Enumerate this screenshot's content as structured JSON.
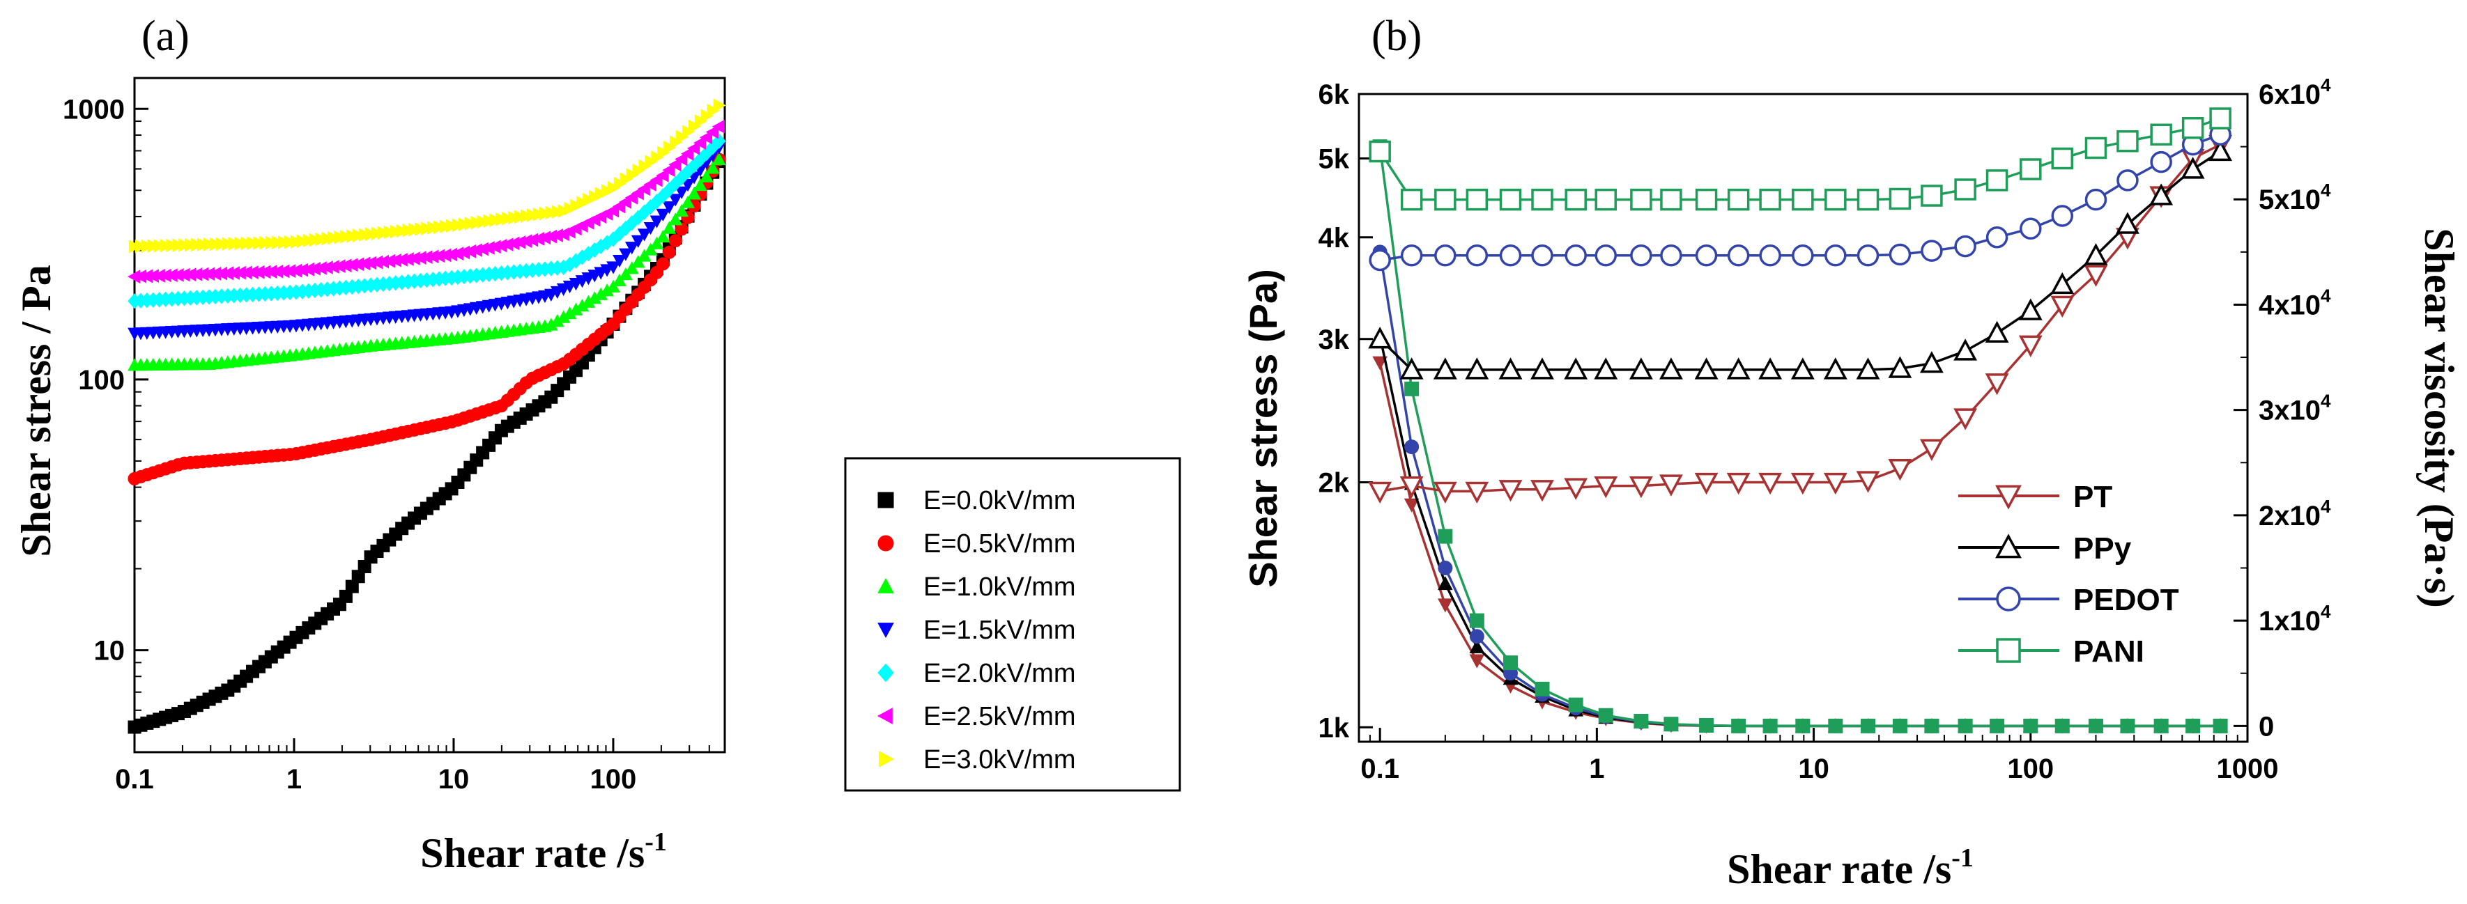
{
  "chart_data": [
    {
      "type": "scatter",
      "panel_label": "(a)",
      "xscale": "log",
      "yscale": "log",
      "xlabel_main": "Shear rate /s",
      "xlabel_sup": "-1",
      "ylabel": "Shear stress / Pa",
      "xlim": [
        0.1,
        500
      ],
      "ylim": [
        4.2,
        1300
      ],
      "xticks": [
        0.1,
        1,
        10,
        100
      ],
      "xtick_labels": [
        "0.1",
        "1",
        "10",
        "100"
      ],
      "yticks": [
        10,
        100,
        1000
      ],
      "ytick_labels": [
        "10",
        "100",
        "1000"
      ],
      "legend_position": "lower-right",
      "series": [
        {
          "name": "E=0.0kV/mm",
          "color": "#000000",
          "marker": "square",
          "x_range": [
            0.1,
            460
          ],
          "n_points": 95,
          "knots": [
            [
              0.1,
              5.2
            ],
            [
              0.2,
              5.9
            ],
            [
              0.4,
              7.2
            ],
            [
              1,
              11
            ],
            [
              2,
              15
            ],
            [
              3,
              22
            ],
            [
              5,
              29
            ],
            [
              10,
              40
            ],
            [
              20,
              65
            ],
            [
              40,
              85
            ],
            [
              60,
              110
            ],
            [
              100,
              160
            ],
            [
              200,
              270
            ],
            [
              460,
              640
            ]
          ]
        },
        {
          "name": "E=0.5kV/mm",
          "color": "#ff0000",
          "marker": "circle",
          "x_range": [
            0.1,
            460
          ],
          "n_points": 95,
          "knots": [
            [
              0.1,
              43
            ],
            [
              0.2,
              49
            ],
            [
              1,
              53
            ],
            [
              3,
              60
            ],
            [
              10,
              70
            ],
            [
              20,
              80
            ],
            [
              30,
              100
            ],
            [
              50,
              115
            ],
            [
              100,
              160
            ],
            [
              200,
              260
            ],
            [
              460,
              650
            ]
          ]
        },
        {
          "name": "E=1.0kV/mm",
          "color": "#00ff00",
          "marker": "triangle-up",
          "x_range": [
            0.1,
            460
          ],
          "n_points": 95,
          "knots": [
            [
              0.1,
              113
            ],
            [
              0.3,
              114
            ],
            [
              1,
              123
            ],
            [
              3,
              133
            ],
            [
              10,
              142
            ],
            [
              40,
              158
            ],
            [
              100,
              220
            ],
            [
              200,
              330
            ],
            [
              460,
              650
            ]
          ]
        },
        {
          "name": "E=1.5kV/mm",
          "color": "#0000ff",
          "marker": "triangle-down",
          "x_range": [
            0.1,
            460
          ],
          "n_points": 95,
          "knots": [
            [
              0.1,
              148
            ],
            [
              1,
              158
            ],
            [
              10,
              178
            ],
            [
              40,
              205
            ],
            [
              100,
              260
            ],
            [
              200,
              400
            ],
            [
              460,
              720
            ]
          ]
        },
        {
          "name": "E=2.0kV/mm",
          "color": "#00ffff",
          "marker": "diamond",
          "x_range": [
            0.1,
            460
          ],
          "n_points": 95,
          "knots": [
            [
              0.1,
              195
            ],
            [
              1,
              210
            ],
            [
              10,
              238
            ],
            [
              50,
              260
            ],
            [
              100,
              330
            ],
            [
              200,
              470
            ],
            [
              460,
              760
            ]
          ]
        },
        {
          "name": "E=2.5kV/mm",
          "color": "#ff00ff",
          "marker": "triangle-left",
          "x_range": [
            0.1,
            460
          ],
          "n_points": 95,
          "knots": [
            [
              0.1,
              240
            ],
            [
              1,
              252
            ],
            [
              10,
              290
            ],
            [
              50,
              345
            ],
            [
              100,
              420
            ],
            [
              200,
              560
            ],
            [
              460,
              860
            ]
          ]
        },
        {
          "name": "E=3.0kV/mm",
          "color": "#ffff00",
          "marker": "triangle-right",
          "x_range": [
            0.1,
            460
          ],
          "n_points": 95,
          "knots": [
            [
              0.1,
              310
            ],
            [
              1,
              322
            ],
            [
              10,
              370
            ],
            [
              50,
              420
            ],
            [
              100,
              510
            ],
            [
              200,
              680
            ],
            [
              460,
              1030
            ]
          ]
        }
      ]
    },
    {
      "type": "line",
      "panel_label": "(b)",
      "xscale": "log",
      "yscale_left": "log",
      "yscale_right": "linear",
      "xlabel_main": "Shear rate /s",
      "xlabel_sup": "-1",
      "ylabel_left": "Shear stress (Pa)",
      "ylabel_right": "Shear viscosity (Pa·s)",
      "xlim": [
        0.08,
        1000
      ],
      "ylim_left": [
        960,
        6000
      ],
      "ylim_right": [
        -1500,
        60000
      ],
      "xticks": [
        0.1,
        1,
        10,
        100,
        1000
      ],
      "xtick_labels": [
        "0.1",
        "1",
        "10",
        "100",
        "1000"
      ],
      "yticks_left": [
        1000,
        2000,
        3000,
        4000,
        5000,
        6000
      ],
      "ytick_labels_left": [
        "1k",
        "2k",
        "3k",
        "4k",
        "5k",
        "6k"
      ],
      "yticks_right": [
        0,
        10000,
        20000,
        30000,
        40000,
        50000,
        60000
      ],
      "ytick_labels_right": [
        {
          "base": "0",
          "exp": ""
        },
        {
          "base": "1x10",
          "exp": "4"
        },
        {
          "base": "2x10",
          "exp": "4"
        },
        {
          "base": "3x10",
          "exp": "4"
        },
        {
          "base": "4x10",
          "exp": "4"
        },
        {
          "base": "5x10",
          "exp": "4"
        },
        {
          "base": "6x10",
          "exp": "4"
        }
      ],
      "legend_position": "lower-right",
      "x_points": [
        0.1,
        0.14,
        0.2,
        0.28,
        0.4,
        0.56,
        0.8,
        1.1,
        1.6,
        2.2,
        3.2,
        4.5,
        6.3,
        8.9,
        12.6,
        17.8,
        25,
        35,
        50,
        70,
        100,
        140,
        200,
        280,
        400,
        560,
        750
      ],
      "stress_series": [
        {
          "name": "PT",
          "color": "#a83232",
          "marker": "triangle-down-open",
          "values": [
            1950,
            1980,
            1950,
            1950,
            1960,
            1960,
            1970,
            1980,
            1980,
            1990,
            2000,
            2000,
            2000,
            2000,
            2000,
            2010,
            2080,
            2200,
            2400,
            2650,
            2950,
            3300,
            3600,
            4000,
            4500,
            5000,
            5200
          ]
        },
        {
          "name": "PPy",
          "color": "#000000",
          "marker": "triangle-up-open",
          "values": [
            3000,
            2750,
            2750,
            2750,
            2750,
            2750,
            2750,
            2750,
            2750,
            2750,
            2750,
            2750,
            2750,
            2750,
            2750,
            2750,
            2760,
            2800,
            2900,
            3050,
            3250,
            3500,
            3800,
            4150,
            4500,
            4850,
            5100
          ]
        },
        {
          "name": "PEDOT",
          "color": "#3344aa",
          "marker": "circle-open",
          "values": [
            3750,
            3800,
            3800,
            3800,
            3800,
            3800,
            3800,
            3800,
            3800,
            3800,
            3800,
            3800,
            3800,
            3800,
            3800,
            3800,
            3810,
            3850,
            3900,
            4000,
            4100,
            4250,
            4450,
            4700,
            4950,
            5200,
            5350
          ]
        },
        {
          "name": "PANI",
          "color": "#1f9e5a",
          "marker": "square-open",
          "values": [
            5100,
            4450,
            4450,
            4450,
            4450,
            4450,
            4450,
            4450,
            4450,
            4450,
            4450,
            4450,
            4450,
            4450,
            4450,
            4450,
            4460,
            4500,
            4580,
            4700,
            4850,
            5000,
            5150,
            5250,
            5350,
            5450,
            5600
          ]
        }
      ],
      "viscosity_series": [
        {
          "name": "PT",
          "color": "#a83232",
          "marker": "triangle-down-filled",
          "values": [
            34500,
            21000,
            11500,
            6200,
            3800,
            2300,
            1300,
            700,
            280,
            80,
            10,
            0,
            0,
            0,
            0,
            0,
            0,
            0,
            0,
            0,
            0,
            0,
            0,
            0,
            0,
            0,
            0
          ]
        },
        {
          "name": "PPy",
          "color": "#000000",
          "marker": "triangle-up-filled",
          "values": [
            37000,
            23000,
            13500,
            7500,
            4500,
            2800,
            1500,
            800,
            350,
            120,
            30,
            0,
            0,
            0,
            0,
            0,
            0,
            0,
            0,
            0,
            0,
            0,
            0,
            0,
            0,
            0,
            0
          ]
        },
        {
          "name": "PEDOT",
          "color": "#3344aa",
          "marker": "circle-filled",
          "values": [
            45000,
            26500,
            15000,
            8500,
            5000,
            3000,
            1700,
            900,
            400,
            150,
            40,
            0,
            0,
            0,
            0,
            0,
            0,
            0,
            0,
            0,
            0,
            0,
            0,
            0,
            0,
            0,
            0
          ]
        },
        {
          "name": "PANI",
          "color": "#1f9e5a",
          "marker": "square-filled",
          "values": [
            55000,
            32000,
            18000,
            10000,
            6000,
            3500,
            2000,
            1000,
            450,
            170,
            50,
            0,
            0,
            0,
            0,
            0,
            0,
            0,
            0,
            0,
            0,
            0,
            0,
            0,
            0,
            0,
            0
          ]
        }
      ]
    }
  ]
}
